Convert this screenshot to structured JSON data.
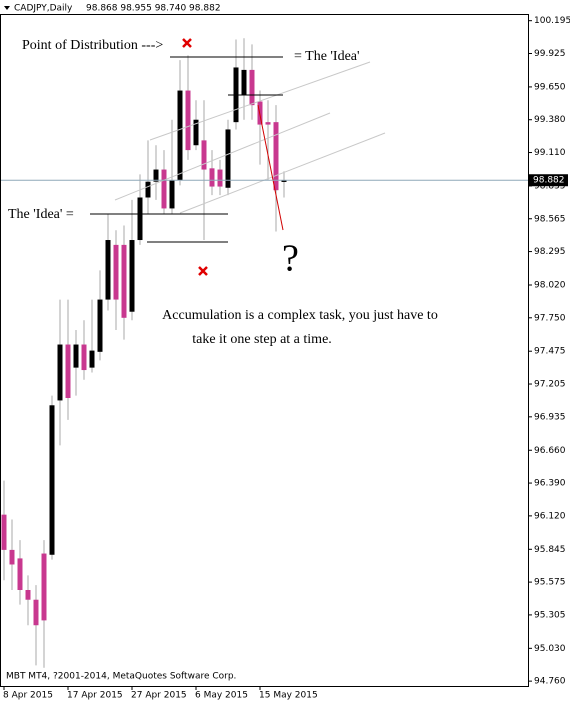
{
  "header": {
    "symbol": "CADJPY,Daily",
    "ohlc": "98.868 98.955 98.740 98.882"
  },
  "footer": "MBT MT4, ?2001-2014, MetaQuotes Software Corp.",
  "annotations": [
    "Point of Distribution --->",
    "= The 'Idea'",
    "The 'Idea' =",
    "?",
    "Accumulation is a complex task, you just have to",
    "take it one step at a time."
  ],
  "chart_data": {
    "type": "candlestick",
    "up_color": "#000000",
    "down_color": "#c8388f",
    "wick_color": "#a8a8a8",
    "categories": [
      "8 Apr 2015",
      null,
      null,
      null,
      null,
      null,
      null,
      null,
      "17 Apr 2015",
      null,
      null,
      null,
      null,
      null,
      null,
      null,
      "27 Apr 2015",
      null,
      null,
      null,
      null,
      null,
      null,
      null,
      "6 May 2015",
      null,
      null,
      null,
      null,
      null,
      null,
      null,
      "15 May 2015",
      null,
      null,
      null
    ],
    "open": [
      96.13,
      95.84,
      95.77,
      95.51,
      95.43,
      95.81,
      95.8,
      97.07,
      97.53,
      97.34,
      97.53,
      97.34,
      97.47,
      97.9,
      98.35,
      98.35,
      97.8,
      98.39,
      98.74,
      98.87,
      98.97,
      98.65,
      98.88,
      99.62,
      99.17,
      99.21,
      98.98,
      98.97,
      98.82,
      99.36,
      99.58,
      99.79,
      99.53,
      99.36,
      99.36,
      98.868
    ],
    "high": [
      96.41,
      96.09,
      95.92,
      95.63,
      95.55,
      95.92,
      97.11,
      97.9,
      97.9,
      97.65,
      97.73,
      97.9,
      98.14,
      98.6,
      98.47,
      98.51,
      98.72,
      98.93,
      99.21,
      99.17,
      99.13,
      99.38,
      99.87,
      99.91,
      99.54,
      99.54,
      99.13,
      99.05,
      99.38,
      100.04,
      100.05,
      100.0,
      99.62,
      99.54,
      99.5,
      98.955
    ],
    "low": [
      95.59,
      95.51,
      95.39,
      95.22,
      94.89,
      94.87,
      95.76,
      96.7,
      96.91,
      97.11,
      97.24,
      97.3,
      97.4,
      97.81,
      97.65,
      97.57,
      97.73,
      98.35,
      98.6,
      98.72,
      98.6,
      98.6,
      98.84,
      99.05,
      99.13,
      98.39,
      98.76,
      98.76,
      98.76,
      99.3,
      99.38,
      99.38,
      99.01,
      98.88,
      98.46,
      98.74
    ],
    "close": [
      95.84,
      95.72,
      95.51,
      95.43,
      95.22,
      95.26,
      97.03,
      97.53,
      97.09,
      97.53,
      97.32,
      97.48,
      97.9,
      98.39,
      97.9,
      97.75,
      98.39,
      98.74,
      98.87,
      98.97,
      98.65,
      98.88,
      99.62,
      99.13,
      99.38,
      98.97,
      98.83,
      98.83,
      99.3,
      99.81,
      99.79,
      99.5,
      99.34,
      99.34,
      98.8,
      98.882
    ],
    "current_price": 98.882,
    "ylim": [
      94.72,
      100.25
    ],
    "yticks": [
      100.195,
      99.925,
      {
        "value": 99.65,
        "label": "99.650"
      },
      {
        "value": 99.38,
        "label": "99.380"
      },
      {
        "value": 99.11,
        "label": "99.110"
      },
      98.835,
      98.565,
      98.295,
      {
        "value": 98.02,
        "label": "98.020"
      },
      {
        "value": 97.75,
        "label": "97.750"
      },
      97.475,
      97.205,
      96.935,
      {
        "value": 96.66,
        "label": "96.660"
      },
      {
        "value": 96.39,
        "label": "96.390"
      },
      {
        "value": 96.12,
        "label": "96.120"
      },
      95.845,
      95.575,
      95.305,
      {
        "value": 95.03,
        "label": "95.030"
      },
      {
        "value": 94.76,
        "label": "94.760"
      }
    ]
  }
}
